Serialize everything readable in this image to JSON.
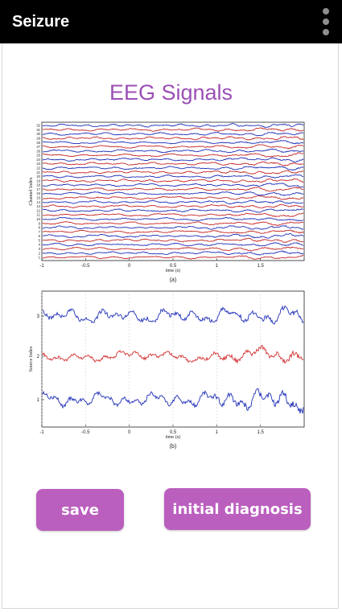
{
  "app_bar": {
    "title": "Seizure",
    "menu_icon": "overflow-menu-icon"
  },
  "page": {
    "heading": "EEG Signals"
  },
  "chart_data": [
    {
      "type": "line",
      "ylabel": "Channel Index",
      "xlabel": "time (s)",
      "caption": "(a)",
      "xlim": [
        -1,
        2
      ],
      "x_ticks": [
        "-1",
        "-0.5",
        "0",
        "0.5",
        "1",
        "1.5"
      ],
      "y_ticks": [
        "1",
        "2",
        "3",
        "4",
        "5",
        "6",
        "7",
        "8",
        "9",
        "10",
        "11",
        "12",
        "13",
        "14",
        "15",
        "16",
        "17",
        "18",
        "19",
        "20",
        "21",
        "22",
        "23",
        "24",
        "25",
        "26",
        "27",
        "28",
        "29",
        "30",
        "31",
        "32"
      ],
      "colors": [
        "#c62828",
        "#1f2fb8"
      ]
    },
    {
      "type": "line",
      "ylabel": "Source Index",
      "xlabel": "time (s)",
      "caption": "(b)",
      "xlim": [
        -1,
        2
      ],
      "x_ticks": [
        "-1",
        "-0.5",
        "0",
        "0.5",
        "1",
        "1.5"
      ],
      "y_ticks": [
        "1",
        "2",
        "3"
      ],
      "series_colors": [
        "#1f2fb8",
        "#d32f2f",
        "#1f2fb8"
      ]
    }
  ],
  "buttons": {
    "save": "save",
    "initial_diagnosis": "initial diagnosis"
  }
}
